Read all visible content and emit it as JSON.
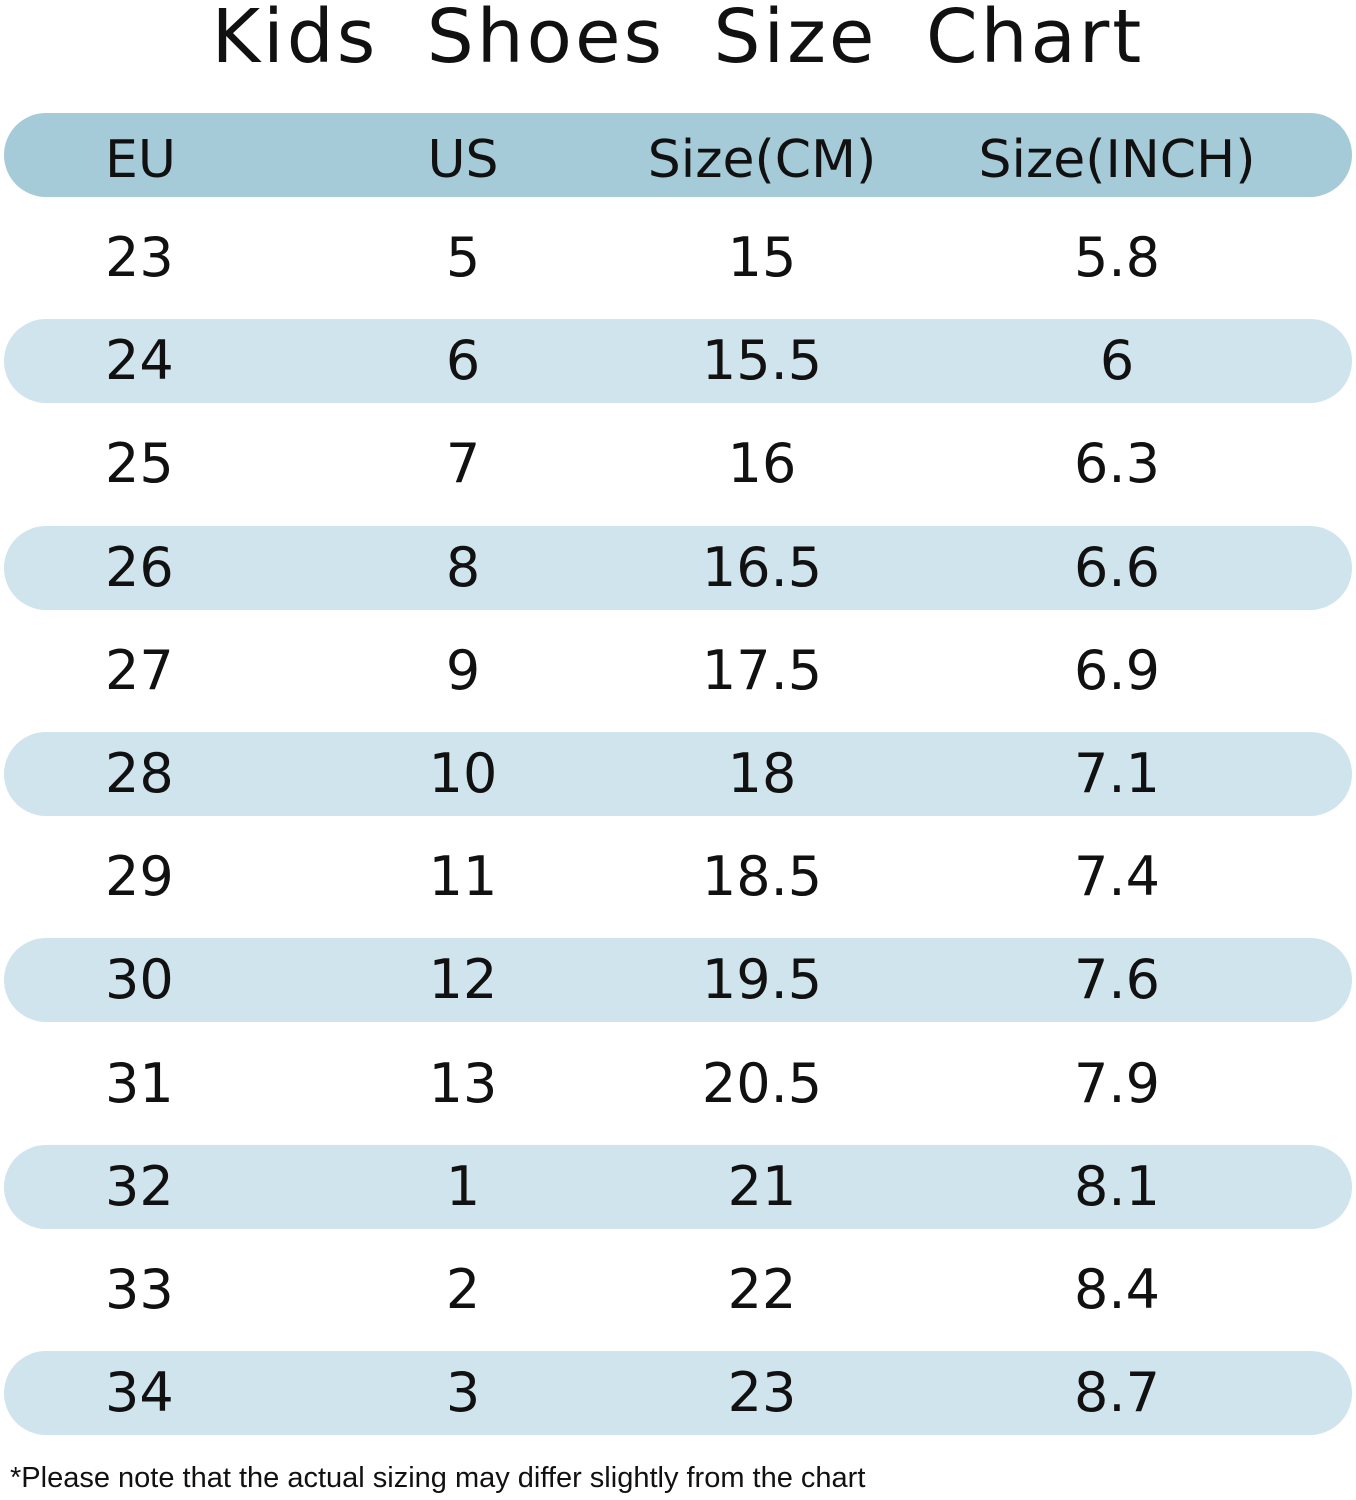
{
  "title": "Kids  Shoes  Size Chart",
  "colors": {
    "header_band": "#a5cad8",
    "alt_band": "#cfe4ec",
    "text": "#111111"
  },
  "chart_data": {
    "type": "table",
    "title": "Kids  Shoes  Size Chart",
    "columns": [
      "EU",
      "US",
      "Size(CM)",
      "Size(INCH)"
    ],
    "rows": [
      [
        "23",
        "5",
        "15",
        "5.8"
      ],
      [
        "24",
        "6",
        "15.5",
        "6"
      ],
      [
        "25",
        "7",
        "16",
        "6.3"
      ],
      [
        "26",
        "8",
        "16.5",
        "6.6"
      ],
      [
        "27",
        "9",
        "17.5",
        "6.9"
      ],
      [
        "28",
        "10",
        "18",
        "7.1"
      ],
      [
        "29",
        "11",
        "18.5",
        "7.4"
      ],
      [
        "30",
        "12",
        "19.5",
        "7.6"
      ],
      [
        "31",
        "13",
        "20.5",
        "7.9"
      ],
      [
        "32",
        "1",
        "21",
        "8.1"
      ],
      [
        "33",
        "2",
        "22",
        "8.4"
      ],
      [
        "34",
        "3",
        "23",
        "8.7"
      ]
    ]
  },
  "footnote": "*Please note that the actual sizing may differ slightly from the chart"
}
